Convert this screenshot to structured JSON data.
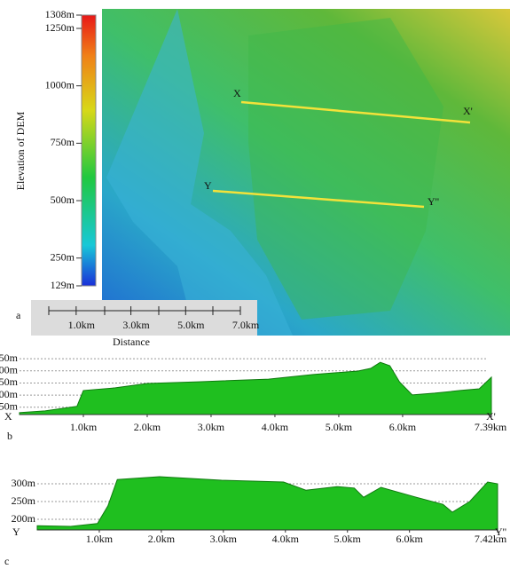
{
  "chart_data": [
    {
      "type": "map",
      "panel_label": "a",
      "colorbar": {
        "label": "Elevation of DEM",
        "lim": [
          129,
          1308
        ],
        "ticks": [
          {
            "value": 1308,
            "label": "1308m"
          },
          {
            "value": 1250,
            "label": "1250m"
          },
          {
            "value": 1000,
            "label": "1000m"
          },
          {
            "value": 750,
            "label": "750m"
          },
          {
            "value": 500,
            "label": "500m"
          },
          {
            "value": 250,
            "label": "250m"
          },
          {
            "value": 129,
            "label": "129m"
          }
        ]
      },
      "scale_bar": {
        "label": "Distance",
        "lim": [
          0,
          7
        ],
        "ticks": [
          {
            "value": 1,
            "label": "1.0km"
          },
          {
            "value": 3,
            "label": "3.0km"
          },
          {
            "value": 5,
            "label": "5.0km"
          },
          {
            "value": 7,
            "label": "7.0km"
          }
        ]
      },
      "profile_lines": [
        {
          "start": "X",
          "end": "X'"
        },
        {
          "start": "Y",
          "end": "Y''"
        }
      ]
    },
    {
      "type": "area",
      "panel_label": "b",
      "start_label": "X",
      "end_label": "X'",
      "color": "#1fbf1f",
      "grid": true,
      "x": [
        0,
        0.4,
        0.9,
        1.0,
        1.5,
        2.0,
        2.8,
        3.9,
        4.6,
        5.3,
        5.5,
        5.65,
        5.8,
        5.95,
        6.15,
        6.5,
        6.9,
        7.2,
        7.39
      ],
      "values": [
        528,
        535,
        554,
        619,
        630,
        648,
        655,
        666,
        685,
        699,
        710,
        735,
        721,
        655,
        601,
        608,
        619,
        626,
        674
      ],
      "xlim": [
        0,
        7.39
      ],
      "ylim": [
        520,
        765
      ],
      "xticks": [
        {
          "value": 1,
          "label": "1.0km"
        },
        {
          "value": 2,
          "label": "2.0km"
        },
        {
          "value": 3,
          "label": "3.0km"
        },
        {
          "value": 4,
          "label": "4.0km"
        },
        {
          "value": 5,
          "label": "5.0km"
        },
        {
          "value": 6,
          "label": "6.0km"
        },
        {
          "value": 7.39,
          "label": "7.39km"
        }
      ],
      "yticks": [
        {
          "value": 750,
          "label": "50m"
        },
        {
          "value": 700,
          "label": "00m"
        },
        {
          "value": 650,
          "label": "50m"
        },
        {
          "value": 600,
          "label": "00m"
        },
        {
          "value": 550,
          "label": "50m"
        }
      ]
    },
    {
      "type": "area",
      "panel_label": "c",
      "start_label": "Y",
      "end_label": "Y''",
      "color": "#1fbf1f",
      "grid": true,
      "x": [
        0,
        0.54,
        0.97,
        1.14,
        1.29,
        1.97,
        2.97,
        3.97,
        4.33,
        4.83,
        5.11,
        5.26,
        5.54,
        6.11,
        6.54,
        6.69,
        6.97,
        7.26,
        7.42
      ],
      "values": [
        182,
        180,
        188,
        238,
        312,
        320,
        310,
        305,
        282,
        292,
        288,
        262,
        290,
        262,
        242,
        220,
        250,
        305,
        300
      ],
      "xlim": [
        0,
        7.42
      ],
      "ylim": [
        170,
        325
      ],
      "xticks": [
        {
          "value": 1,
          "label": "1.0km"
        },
        {
          "value": 2,
          "label": "2.0km"
        },
        {
          "value": 3,
          "label": "3.0km"
        },
        {
          "value": 4,
          "label": "4.0km"
        },
        {
          "value": 5,
          "label": "5.0km"
        },
        {
          "value": 6,
          "label": "6.0km"
        },
        {
          "value": 7.42,
          "label": "7.42km"
        }
      ],
      "yticks": [
        {
          "value": 300,
          "label": "300m"
        },
        {
          "value": 250,
          "label": "250m"
        },
        {
          "value": 200,
          "label": "200m"
        }
      ]
    }
  ]
}
